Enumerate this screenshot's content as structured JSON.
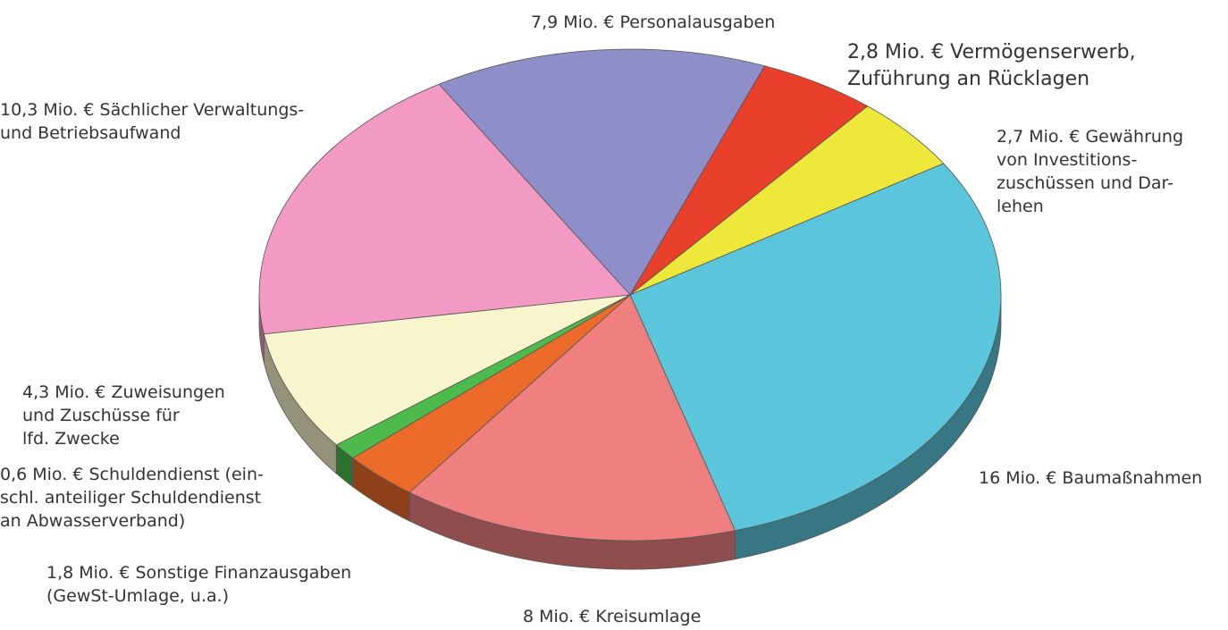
{
  "chart_data": {
    "type": "pie",
    "categories": [
      "Personalausgaben",
      "Vermögenserwerb,\nZuführung an Rücklagen",
      "Gewährung\nvon Investitions-\nzuschüssen und Dar-\nlehen",
      "Baumaßnahmen",
      "Kreisumlage",
      "Sonstige Finanzausgaben\n(GewSt-Umlage, u.a.)",
      "Schuldendienst (ein-\nschl. anteiliger Schuldendienst\nan Abwasserverband)",
      "Zuweisungen\nund Zuschüsse für\nlfd. Zwecke",
      "Sächlicher Verwaltungs-\nund Betriebsaufwand"
    ],
    "values": [
      7.9,
      2.8,
      2.7,
      16,
      8,
      1.8,
      0.6,
      4.3,
      10.3
    ],
    "value_labels": [
      "7,9 Mio. €",
      "2,8 Mio. €",
      "2,7 Mio. €",
      "16 Mio. €",
      "8 Mio. €",
      "1,8 Mio. €",
      "0,6 Mio. €",
      "4,3 Mio. €",
      "10,3 Mio. €"
    ],
    "colors": [
      "#8e8fc8",
      "#e8402a",
      "#ede83a",
      "#5bc6db",
      "#f08080",
      "#ec6a2a",
      "#4cbb4c",
      "#f8f4cc",
      "#f29ac4"
    ]
  }
}
